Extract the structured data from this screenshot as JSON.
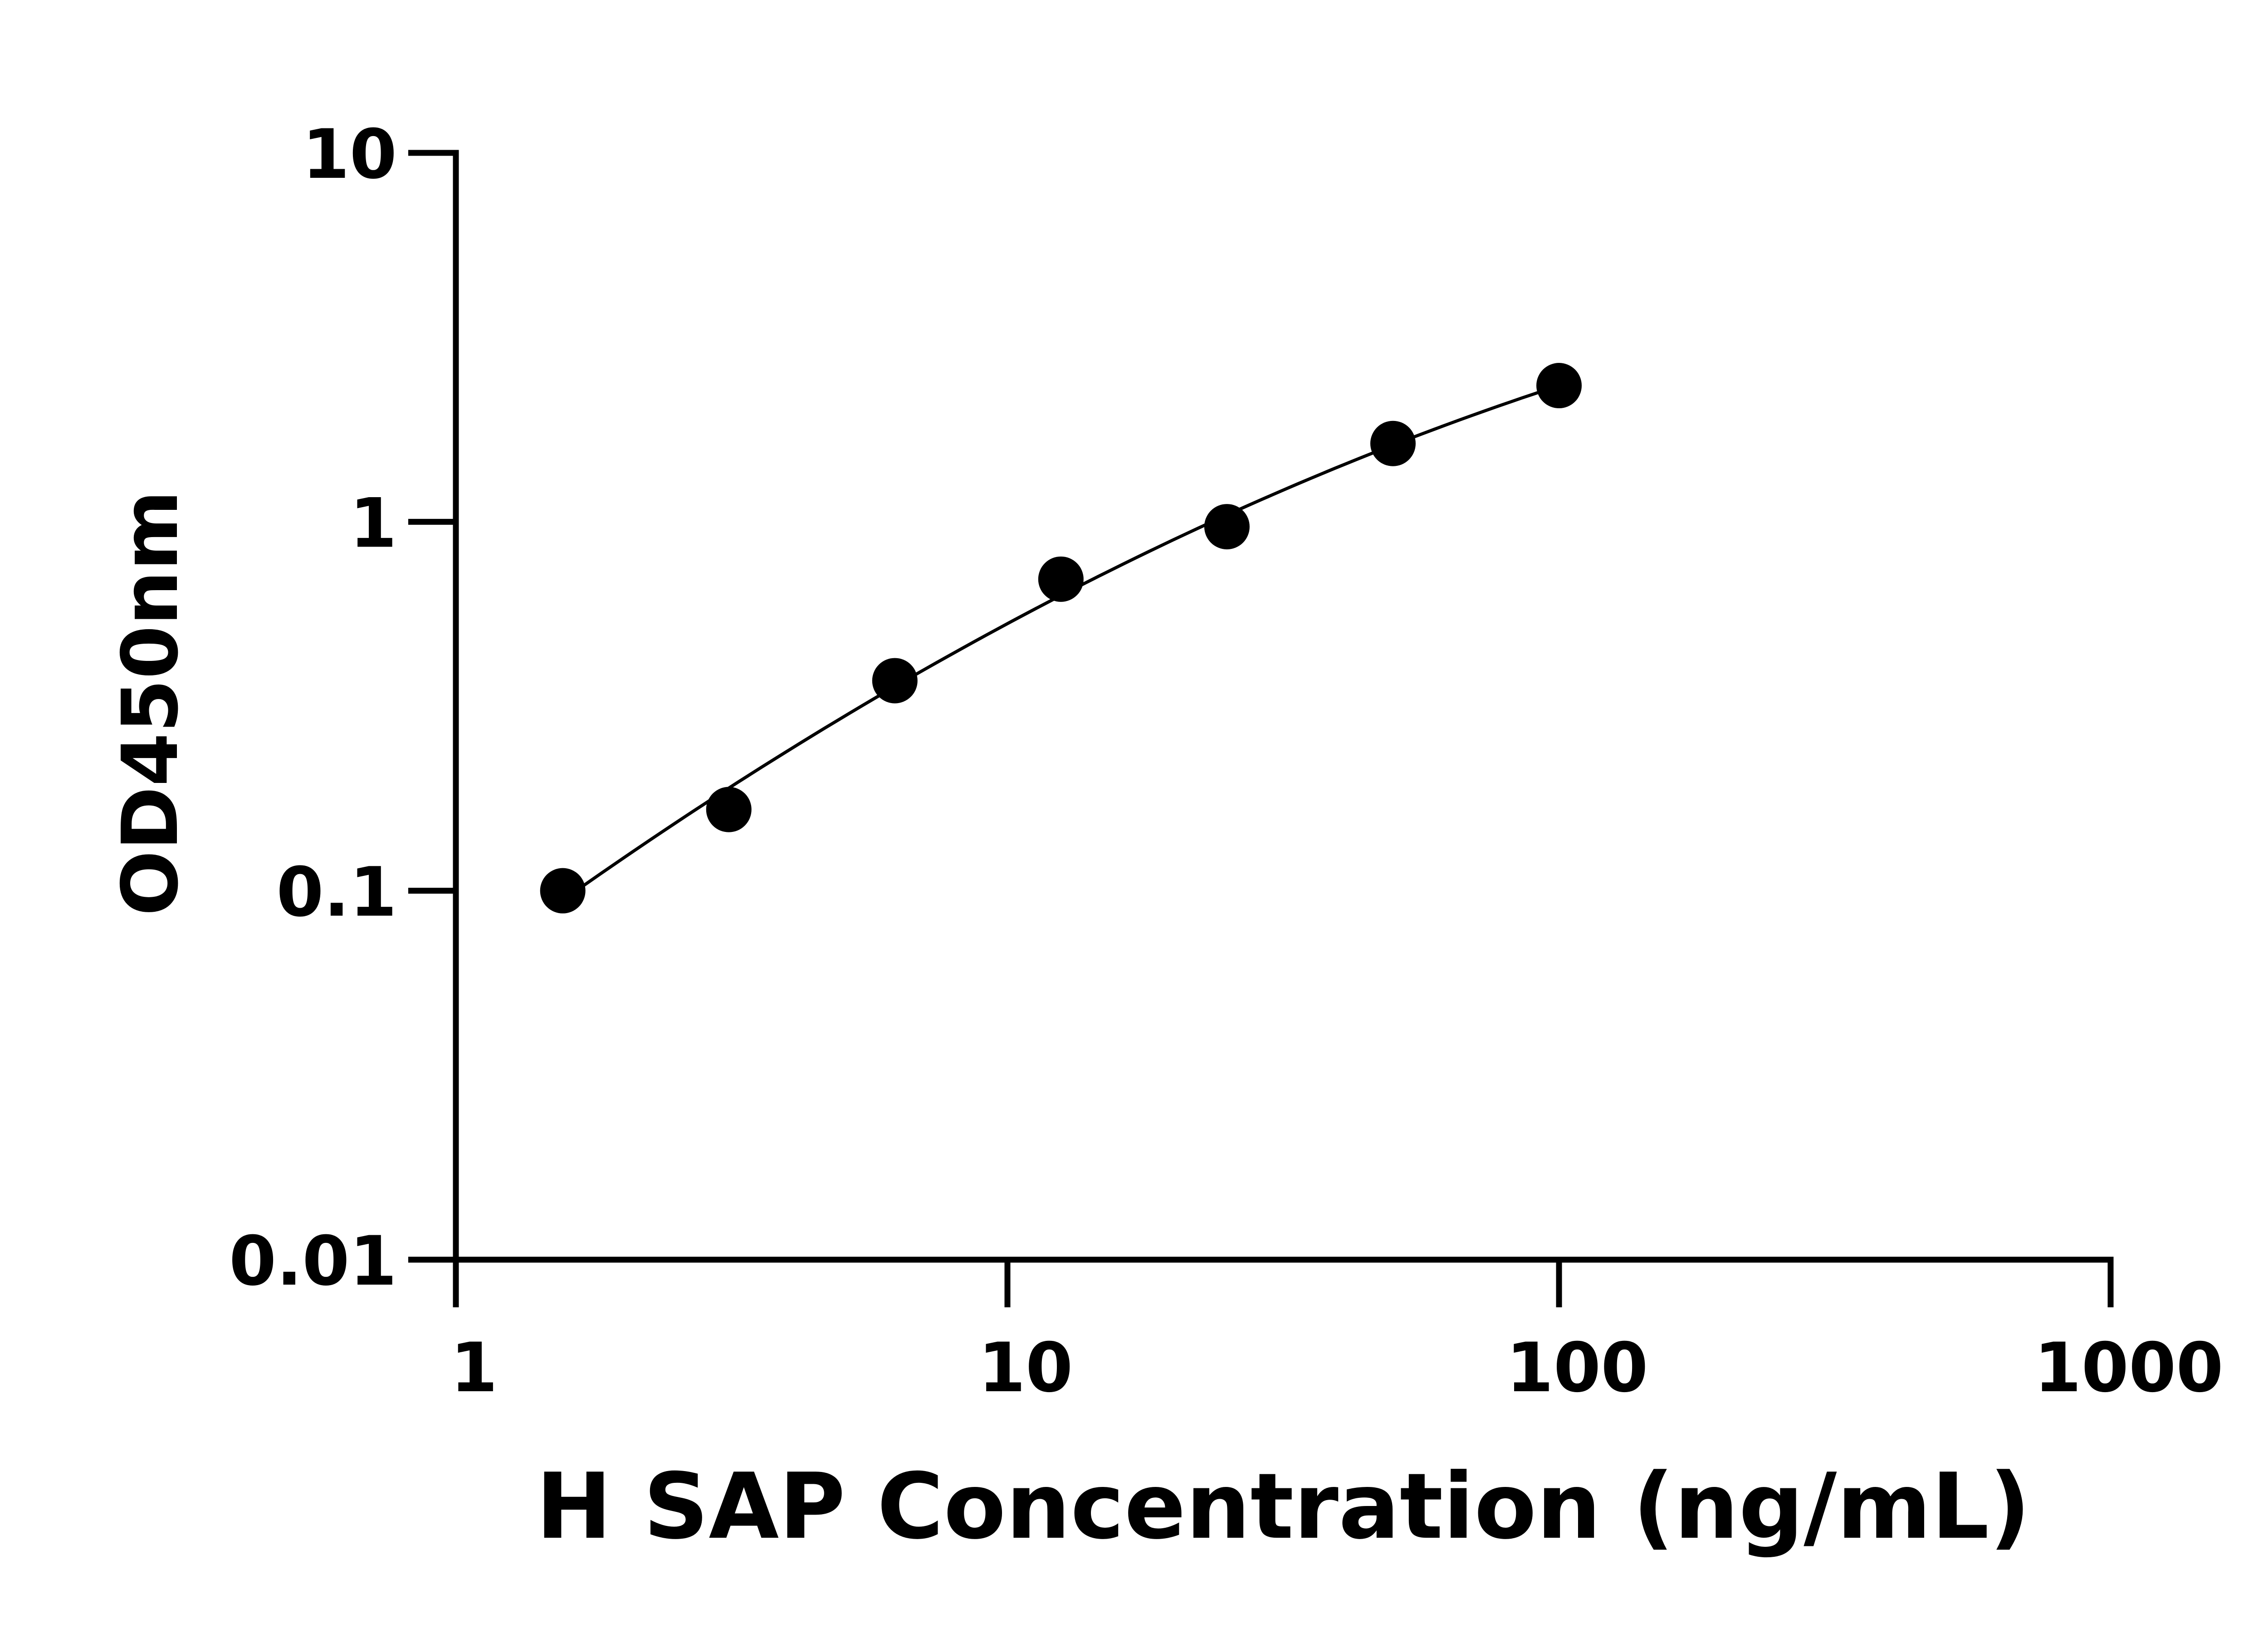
{
  "chart_data": {
    "type": "scatter",
    "xlabel": "H SAP Concentration (ng/mL)",
    "ylabel": "OD450nm",
    "xscale": "log",
    "yscale": "log",
    "xlim": [
      1,
      1000
    ],
    "ylim": [
      0.01,
      10
    ],
    "xticks": [
      "1",
      "10",
      "100",
      "1000"
    ],
    "yticks": [
      "0.01",
      "0.1",
      "1",
      "10"
    ],
    "grid": false,
    "x": [
      1.5625,
      3.125,
      6.25,
      12.5,
      25,
      50,
      100
    ],
    "y": [
      0.1,
      0.166,
      0.371,
      0.699,
      0.97,
      1.63,
      2.34
    ],
    "fit_curve": true,
    "colors": {
      "points": "#000000",
      "line": "#000000"
    }
  }
}
